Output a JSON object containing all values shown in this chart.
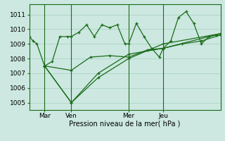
{
  "background_color": "#cce8e0",
  "grid_color": "#a8cfc0",
  "line_color": "#1a6b1a",
  "xlabel": "Pression niveau de la mer( hPa )",
  "ylim": [
    1004.5,
    1011.7
  ],
  "yticks": [
    1005,
    1006,
    1007,
    1008,
    1009,
    1010,
    1011
  ],
  "xtick_labels": [
    "Mar",
    "Ven",
    "Mer",
    "Jeu"
  ],
  "xtick_positions": [
    8,
    22,
    52,
    70
  ],
  "vlines_x": [
    8,
    22,
    52,
    70
  ],
  "total_points": 100,
  "series": [
    {
      "x": [
        0,
        2,
        4,
        8,
        12,
        16,
        20,
        22,
        26,
        30,
        34,
        38,
        42,
        46,
        50,
        52,
        56,
        60,
        64,
        68,
        70,
        74,
        78,
        82,
        86,
        90,
        94,
        98,
        100
      ],
      "y": [
        1009.5,
        1009.2,
        1009.0,
        1007.5,
        1007.8,
        1009.5,
        1009.5,
        1009.5,
        1009.8,
        1010.3,
        1009.5,
        1010.3,
        1010.1,
        1010.3,
        1009.0,
        1009.0,
        1010.4,
        1009.5,
        1008.7,
        1008.1,
        1008.7,
        1009.2,
        1010.8,
        1011.2,
        1010.4,
        1009.0,
        1009.5,
        1009.6,
        1009.7
      ]
    },
    {
      "x": [
        8,
        22,
        32,
        42,
        52,
        62,
        70,
        80,
        90,
        100
      ],
      "y": [
        1007.5,
        1007.2,
        1008.1,
        1008.2,
        1008.1,
        1008.6,
        1008.7,
        1009.0,
        1009.2,
        1009.6
      ]
    },
    {
      "x": [
        8,
        22,
        36,
        52,
        70,
        100
      ],
      "y": [
        1007.5,
        1005.0,
        1006.7,
        1008.0,
        1009.0,
        1009.7
      ]
    },
    {
      "x": [
        8,
        22,
        36,
        52,
        70,
        100
      ],
      "y": [
        1007.5,
        1005.0,
        1007.0,
        1008.3,
        1008.7,
        1009.7
      ]
    }
  ]
}
